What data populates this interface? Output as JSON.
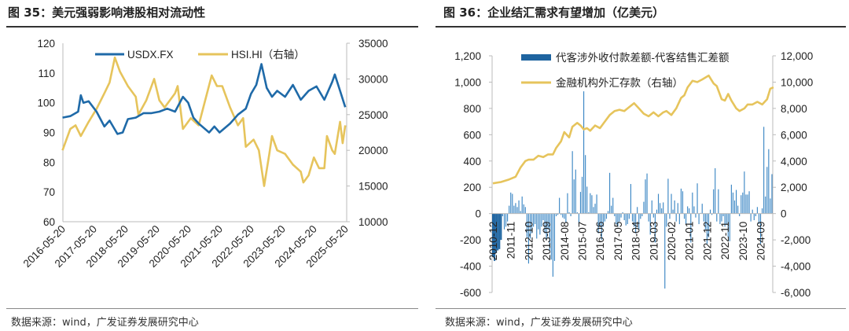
{
  "left_panel": {
    "title": "图 35：美元强弱影响港股相对流动性",
    "source": "数据来源：wind，广发证券发展研究中心"
  },
  "right_panel": {
    "title": "图 36：企业结汇需求有望增加（亿美元）",
    "source": "数据来源：wind，广发证券发展研究中心"
  },
  "colors": {
    "blue": "#1f6aa8",
    "gold": "#e6c45c",
    "bar": "#3a86c4"
  },
  "chart_data": [
    {
      "type": "line",
      "title": "图 35：美元强弱影响港股相对流动性",
      "xlim": [
        "2016-05-20",
        "2025-05-31"
      ],
      "x_ticks": [
        "2016-05-20",
        "2017-05-20",
        "2018-05-20",
        "2019-05-20",
        "2020-05-20",
        "2021-05-20",
        "2022-05-20",
        "2023-05-20",
        "2024-05-20",
        "2025-05-20"
      ],
      "ylim": [
        60,
        120
      ],
      "y_ticks": [
        "60",
        "70",
        "80",
        "90",
        "100",
        "110",
        "120"
      ],
      "y2lim": [
        10000,
        35000
      ],
      "y2_ticks": [
        "10000",
        "15000",
        "20000",
        "25000",
        "30000",
        "35000"
      ],
      "legend": "top-center",
      "series": [
        {
          "name": "USDX.FX",
          "axis": "left",
          "color": "#1f6aa8",
          "points": [
            [
              "2016-05",
              95
            ],
            [
              "2016-08",
              95.5
            ],
            [
              "2016-11",
              97
            ],
            [
              "2016-12",
              102.5
            ],
            [
              "2017-01",
              100
            ],
            [
              "2017-03",
              100.5
            ],
            [
              "2017-06",
              97
            ],
            [
              "2017-09",
              92
            ],
            [
              "2017-11",
              94
            ],
            [
              "2018-02",
              89.5
            ],
            [
              "2018-04",
              90
            ],
            [
              "2018-06",
              94.5
            ],
            [
              "2018-09",
              95
            ],
            [
              "2018-12",
              96.5
            ],
            [
              "2019-03",
              96.5
            ],
            [
              "2019-06",
              97
            ],
            [
              "2019-09",
              98
            ],
            [
              "2019-12",
              97
            ],
            [
              "2020-03",
              102
            ],
            [
              "2020-05",
              100
            ],
            [
              "2020-07",
              95
            ],
            [
              "2020-09",
              93
            ],
            [
              "2021-01",
              90
            ],
            [
              "2021-03",
              92
            ],
            [
              "2021-05",
              90
            ],
            [
              "2021-09",
              93
            ],
            [
              "2021-12",
              96
            ],
            [
              "2022-03",
              98
            ],
            [
              "2022-05",
              103
            ],
            [
              "2022-07",
              106
            ],
            [
              "2022-09",
              113
            ],
            [
              "2022-11",
              105
            ],
            [
              "2023-01",
              102
            ],
            [
              "2023-03",
              104
            ],
            [
              "2023-06",
              102
            ],
            [
              "2023-09",
              106
            ],
            [
              "2023-12",
              101
            ],
            [
              "2024-03",
              104
            ],
            [
              "2024-06",
              105.5
            ],
            [
              "2024-09",
              101
            ],
            [
              "2024-12",
              107
            ],
            [
              "2025-01",
              109.5
            ],
            [
              "2025-03",
              104
            ],
            [
              "2025-05",
              98.5
            ]
          ]
        },
        {
          "name": "HSI.HI（右轴）",
          "axis": "right",
          "color": "#e6c45c",
          "points": [
            [
              "2016-05",
              20000
            ],
            [
              "2016-08",
              23000
            ],
            [
              "2016-10",
              23500
            ],
            [
              "2016-12",
              22000
            ],
            [
              "2017-03",
              24000
            ],
            [
              "2017-06",
              25800
            ],
            [
              "2017-09",
              28000
            ],
            [
              "2017-11",
              29500
            ],
            [
              "2018-01",
              33000
            ],
            [
              "2018-03",
              31000
            ],
            [
              "2018-06",
              29000
            ],
            [
              "2018-09",
              27500
            ],
            [
              "2018-10",
              25000
            ],
            [
              "2019-01",
              27000
            ],
            [
              "2019-04",
              30000
            ],
            [
              "2019-06",
              27000
            ],
            [
              "2019-08",
              26000
            ],
            [
              "2019-12",
              28000
            ],
            [
              "2020-01",
              29000
            ],
            [
              "2020-03",
              23000
            ],
            [
              "2020-06",
              24500
            ],
            [
              "2020-09",
              23500
            ],
            [
              "2021-02",
              30500
            ],
            [
              "2021-04",
              29000
            ],
            [
              "2021-06",
              29000
            ],
            [
              "2021-09",
              26000
            ],
            [
              "2021-12",
              23500
            ],
            [
              "2022-02",
              24500
            ],
            [
              "2022-03",
              20500
            ],
            [
              "2022-06",
              21500
            ],
            [
              "2022-08",
              20000
            ],
            [
              "2022-10",
              15000
            ],
            [
              "2022-12",
              19500
            ],
            [
              "2023-01",
              22000
            ],
            [
              "2023-03",
              20000
            ],
            [
              "2023-06",
              19500
            ],
            [
              "2023-09",
              18000
            ],
            [
              "2023-12",
              17000
            ],
            [
              "2024-01",
              15500
            ],
            [
              "2024-03",
              16500
            ],
            [
              "2024-05",
              19000
            ],
            [
              "2024-07",
              17500
            ],
            [
              "2024-09",
              17500
            ],
            [
              "2024-10",
              22000
            ],
            [
              "2024-12",
              20000
            ],
            [
              "2025-01",
              19500
            ],
            [
              "2025-03",
              24000
            ],
            [
              "2025-04",
              21000
            ],
            [
              "2025-05",
              23500
            ]
          ]
        }
      ]
    },
    {
      "type": "bar+line",
      "title": "图 36：企业结汇需求有望增加（亿美元）",
      "x_start": "2010-12",
      "frequency": "monthly",
      "x_ticks": [
        "2010-12",
        "2011-11",
        "2012-10",
        "2013-09",
        "2014-08",
        "2015-07",
        "2016-06",
        "2017-05",
        "2018-04",
        "2019-03",
        "2020-02",
        "2021-01",
        "2021-12",
        "2022-11",
        "2023-10",
        "2024-09"
      ],
      "ylim": [
        -600,
        1200
      ],
      "y_ticks": [
        "-600",
        "-400",
        "-200",
        "0",
        "200",
        "400",
        "600",
        "800",
        "1,000",
        "1,200"
      ],
      "y2lim": [
        -6000,
        12000
      ],
      "y2_ticks": [
        "-6,000",
        "-4,000",
        "-2,000",
        "0",
        "2,000",
        "4,000",
        "6,000",
        "8,000",
        "10,000",
        "12,000"
      ],
      "legend": "top-left",
      "bar_series": {
        "name": "代客涉外收付款差额-代客结售汇差额",
        "axis": "left",
        "values": [
          -330,
          -360,
          -300,
          -280,
          -270,
          -200,
          -20,
          -120,
          -100,
          -60,
          60,
          160,
          150,
          60,
          80,
          50,
          100,
          20,
          130,
          70,
          50,
          -180,
          -380,
          -190,
          -150,
          -100,
          -80,
          -190,
          -120,
          -160,
          -100,
          -50,
          -150,
          -200,
          -120,
          -280,
          -350,
          -480,
          -360,
          -20,
          -10,
          120,
          -10,
          -30,
          -40,
          -70,
          155,
          10,
          -20,
          475,
          260,
          335,
          10,
          -80,
          165,
          280,
          930,
          445,
          205,
          10,
          155,
          140,
          50,
          75,
          145,
          -150,
          -100,
          -200,
          -100,
          -60,
          -40,
          20,
          310,
          60,
          120,
          -20,
          -80,
          -100,
          -60,
          -30,
          10,
          -50,
          -90,
          -80,
          -40,
          225,
          -60,
          -100,
          -150,
          50,
          -120,
          -40,
          -20,
          90,
          260,
          305,
          -60,
          -160,
          100,
          -30,
          -220,
          30,
          150,
          80,
          40,
          85,
          -570,
          -100,
          265,
          -40,
          150,
          30,
          100,
          -60,
          80,
          -80,
          190,
          170,
          -40,
          -80,
          55,
          40,
          -220,
          160,
          55,
          -30,
          230,
          -80,
          5,
          75,
          -60,
          -120,
          -230,
          -180,
          30,
          -10,
          185,
          345,
          -60,
          185,
          -80,
          -60,
          -20,
          -100,
          -80,
          -180,
          -210,
          220,
          160,
          100,
          180,
          60,
          -20,
          140,
          160,
          320,
          145,
          145,
          170,
          -60,
          30,
          -50,
          -20,
          50,
          -80,
          -230,
          40,
          660,
          130,
          355,
          490,
          115,
          300
        ]
      },
      "line_series": {
        "name": "金融机构外汇存款（右轴）",
        "axis": "right",
        "points": [
          [
            "2010-12",
            2300
          ],
          [
            "2011-05",
            2400
          ],
          [
            "2011-10",
            2600
          ],
          [
            "2012-02",
            2800
          ],
          [
            "2012-05",
            3500
          ],
          [
            "2012-08",
            4000
          ],
          [
            "2012-10",
            4100
          ],
          [
            "2013-01",
            4100
          ],
          [
            "2013-04",
            4400
          ],
          [
            "2013-07",
            4300
          ],
          [
            "2013-10",
            4500
          ],
          [
            "2014-01",
            4500
          ],
          [
            "2014-03",
            5000
          ],
          [
            "2014-06",
            5500
          ],
          [
            "2014-08",
            6200
          ],
          [
            "2014-11",
            5800
          ],
          [
            "2015-01",
            6600
          ],
          [
            "2015-04",
            6900
          ],
          [
            "2015-06",
            6700
          ],
          [
            "2015-08",
            6400
          ],
          [
            "2015-10",
            6500
          ],
          [
            "2015-12",
            6300
          ],
          [
            "2016-03",
            6700
          ],
          [
            "2016-06",
            6500
          ],
          [
            "2016-09",
            7000
          ],
          [
            "2016-12",
            7500
          ],
          [
            "2017-03",
            7800
          ],
          [
            "2017-06",
            7900
          ],
          [
            "2017-09",
            7800
          ],
          [
            "2017-11",
            8000
          ],
          [
            "2018-03",
            8400
          ],
          [
            "2018-06",
            8000
          ],
          [
            "2018-09",
            7600
          ],
          [
            "2018-12",
            7400
          ],
          [
            "2019-03",
            7700
          ],
          [
            "2019-06",
            7400
          ],
          [
            "2019-09",
            7700
          ],
          [
            "2019-11",
            7800
          ],
          [
            "2020-02",
            7500
          ],
          [
            "2020-05",
            8000
          ],
          [
            "2020-08",
            8800
          ],
          [
            "2020-10",
            9000
          ],
          [
            "2020-12",
            9600
          ],
          [
            "2021-03",
            10100
          ],
          [
            "2021-06",
            10000
          ],
          [
            "2021-09",
            10200
          ],
          [
            "2022-01",
            10500
          ],
          [
            "2022-04",
            9900
          ],
          [
            "2022-06",
            9700
          ],
          [
            "2022-09",
            8700
          ],
          [
            "2022-11",
            8600
          ],
          [
            "2023-01",
            9100
          ],
          [
            "2023-03",
            8600
          ],
          [
            "2023-06",
            8000
          ],
          [
            "2023-08",
            7800
          ],
          [
            "2023-11",
            8000
          ],
          [
            "2024-01",
            8300
          ],
          [
            "2024-04",
            8300
          ],
          [
            "2024-07",
            8500
          ],
          [
            "2024-10",
            8300
          ],
          [
            "2025-01",
            8700
          ],
          [
            "2025-03",
            9500
          ],
          [
            "2025-05",
            9600
          ]
        ]
      }
    }
  ]
}
